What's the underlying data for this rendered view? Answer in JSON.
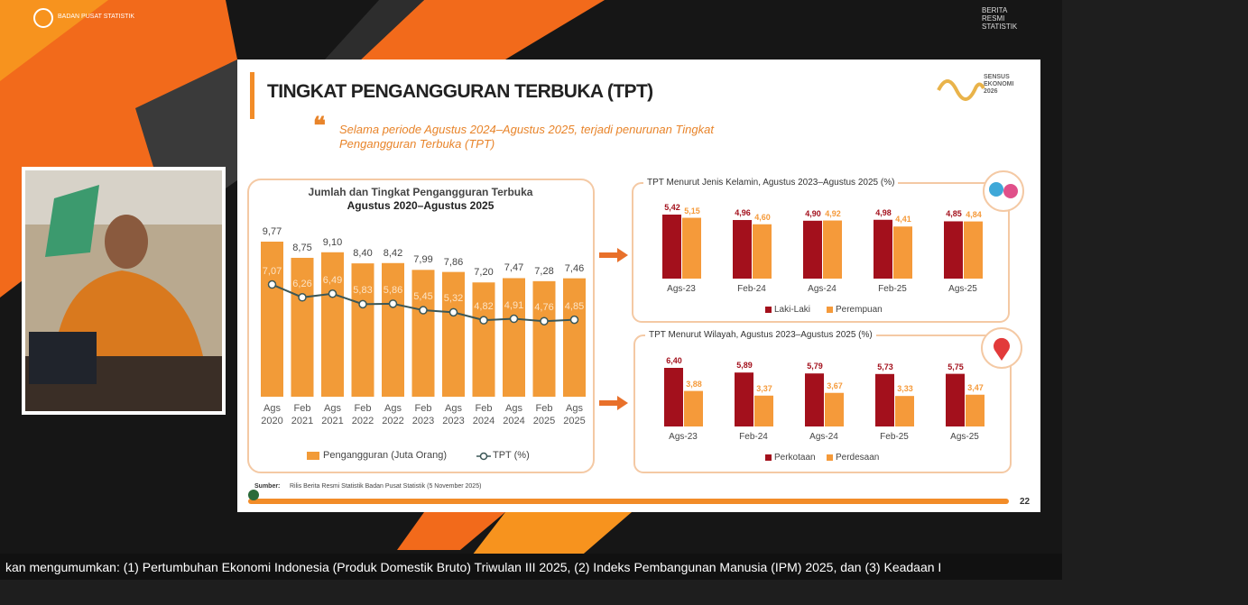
{
  "broadcast": {
    "logo_text": "BADAN PUSAT STATISTIK",
    "badge": "BERITA RESMI STATISTIK",
    "ticker": "kan mengumumkan: (1) Pertumbuhan Ekonomi Indonesia (Produk Domestik Bruto) Triwulan III 2025, (2) Indeks Pembangunan Manusia (IPM) 2025, dan (3) Keadaan I"
  },
  "slide": {
    "title": "TINGKAT PENGANGGURAN TERBUKA (TPT)",
    "quote": "Selama periode Agustus 2024–Agustus 2025, terjadi penurunan Tingkat Pengangguran Terbuka (TPT)",
    "logo": "SENSUS EKONOMI 2026",
    "source_label": "Sumber:",
    "source": "Rilis Berita Resmi Statistik Badan Pusat Statistik (5 November 2025)",
    "page_number": "22"
  },
  "chart_data": [
    {
      "type": "bar_line",
      "title": "Jumlah dan Tingkat Pengangguran Terbuka",
      "subtitle": "Agustus 2020–Agustus 2025",
      "categories": [
        "Ags 2020",
        "Feb 2021",
        "Ags 2021",
        "Feb 2022",
        "Ags 2022",
        "Feb 2023",
        "Ags 2023",
        "Feb 2024",
        "Ags 2024",
        "Feb 2025",
        "Ags 2025"
      ],
      "series": [
        {
          "name": "Pengangguran (Juta Orang)",
          "type": "bar",
          "color": "#f29b38",
          "values": [
            9.77,
            8.75,
            9.1,
            8.4,
            8.42,
            7.99,
            7.86,
            7.2,
            7.47,
            7.28,
            7.46
          ],
          "value_labels": [
            "9,77",
            "8,75",
            "9,10",
            "8,40",
            "8,42",
            "7,99",
            "7,86",
            "7,20",
            "7,47",
            "7,28",
            "7,46"
          ]
        },
        {
          "name": "TPT (%)",
          "type": "line",
          "color": "#3b5757",
          "values": [
            7.07,
            6.26,
            6.49,
            5.83,
            5.86,
            5.45,
            5.32,
            4.82,
            4.91,
            4.76,
            4.85
          ],
          "value_labels": [
            "7,07",
            "6,26",
            "6,49",
            "5,83",
            "5,86",
            "5,45",
            "5,32",
            "4,82",
            "4,91",
            "4,76",
            "4,85"
          ]
        }
      ]
    },
    {
      "type": "grouped_bar",
      "title": "TPT Menurut Jenis Kelamin, Agustus 2023–Agustus 2025 (%)",
      "categories": [
        "Ags-23",
        "Feb-24",
        "Ags-24",
        "Feb-25",
        "Ags-25"
      ],
      "series": [
        {
          "name": "Laki-Laki",
          "color": "#a3101c",
          "values": [
            5.42,
            4.96,
            4.9,
            4.98,
            4.85
          ],
          "value_labels": [
            "5,42",
            "4,96",
            "4,90",
            "4,98",
            "4,85"
          ]
        },
        {
          "name": "Perempuan",
          "color": "#f59a3a",
          "values": [
            5.15,
            4.6,
            4.92,
            4.41,
            4.84
          ],
          "value_labels": [
            "5,15",
            "4,60",
            "4,92",
            "4,41",
            "4,84"
          ]
        }
      ]
    },
    {
      "type": "grouped_bar",
      "title": "TPT Menurut Wilayah, Agustus 2023–Agustus 2025 (%)",
      "categories": [
        "Ags-23",
        "Feb-24",
        "Ags-24",
        "Feb-25",
        "Ags-25"
      ],
      "series": [
        {
          "name": "Perkotaan",
          "color": "#a3101c",
          "values": [
            6.4,
            5.89,
            5.79,
            5.73,
            5.75
          ],
          "value_labels": [
            "6,40",
            "5,89",
            "5,79",
            "5,73",
            "5,75"
          ]
        },
        {
          "name": "Perdesaan",
          "color": "#f59a3a",
          "values": [
            3.88,
            3.37,
            3.67,
            3.33,
            3.47
          ],
          "value_labels": [
            "3,88",
            "3,37",
            "3,67",
            "3,33",
            "3,47"
          ]
        }
      ]
    }
  ]
}
